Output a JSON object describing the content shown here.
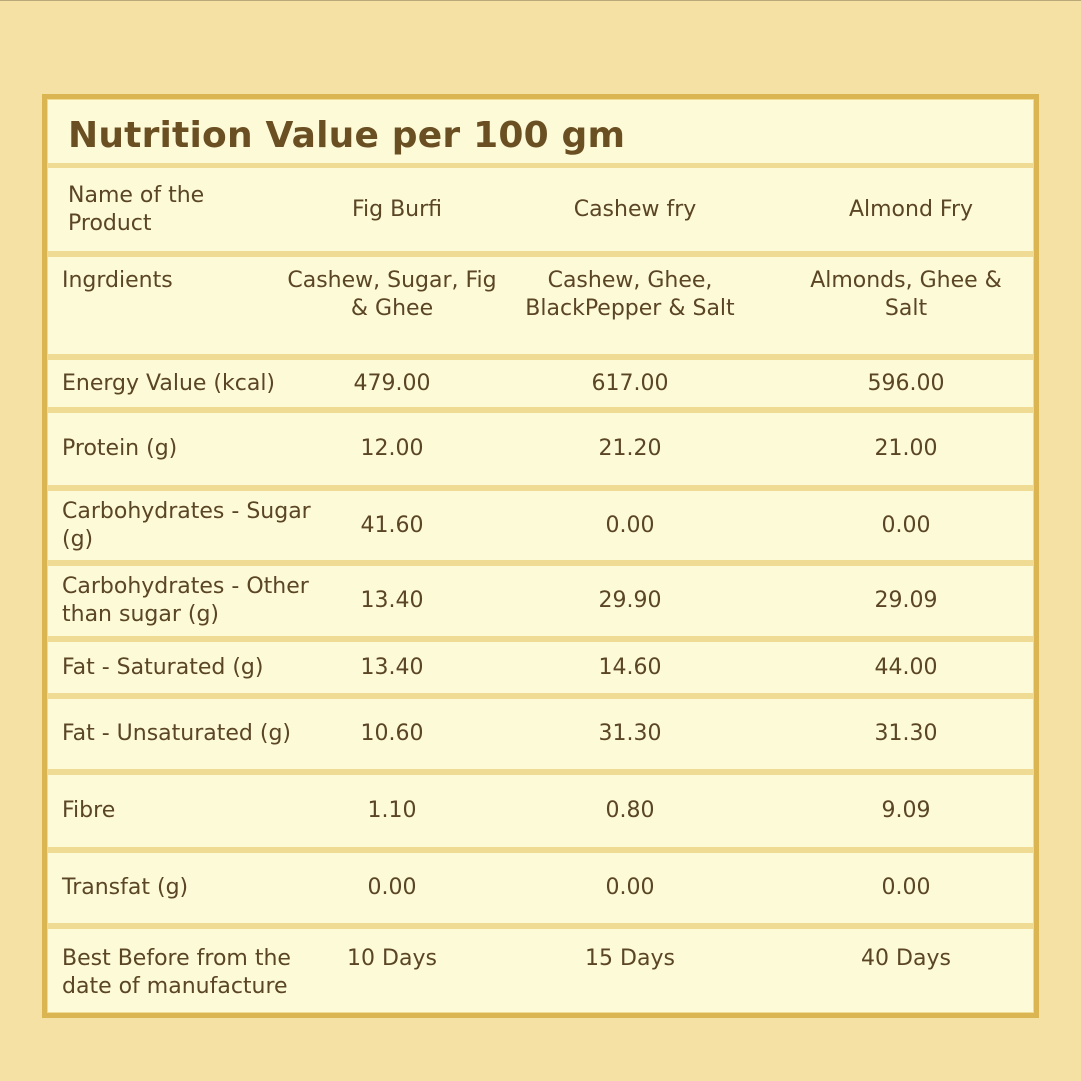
{
  "title": "Nutrition Value per 100 gm",
  "header": {
    "label": "Name of the Product",
    "products": [
      "Fig Burfi",
      "Cashew fry",
      "Almond Fry"
    ]
  },
  "ingredients": {
    "label": "Ingrdients",
    "values": [
      "Cashew, Sugar, Fig & Ghee",
      "Cashew, Ghee, BlackPepper & Salt",
      "Almonds, Ghee & Salt"
    ]
  },
  "rows": [
    {
      "label": "Energy Value (kcal)",
      "values": [
        "479.00",
        "617.00",
        "596.00"
      ]
    },
    {
      "label": "Protein (g)",
      "values": [
        "12.00",
        "21.20",
        "21.00"
      ]
    },
    {
      "label": "Carbohydrates - Sugar (g)",
      "values": [
        "41.60",
        "0.00",
        "0.00"
      ]
    },
    {
      "label": "Carbohydrates - Other than sugar (g)",
      "values": [
        "13.40",
        "29.90",
        "29.09"
      ]
    },
    {
      "label": "Fat - Saturated (g)",
      "values": [
        "13.40",
        "14.60",
        "44.00"
      ]
    },
    {
      "label": "Fat - Unsaturated (g)",
      "values": [
        "10.60",
        "31.30",
        "31.30"
      ]
    },
    {
      "label": "Fibre",
      "values": [
        "1.10",
        "0.80",
        "9.09"
      ]
    },
    {
      "label": "Transfat (g)",
      "values": [
        "0.00",
        "0.00",
        "0.00"
      ]
    },
    {
      "label": "Best Before from the date of manufacture",
      "values": [
        "10 Days",
        "15 Days",
        "40 Days"
      ]
    }
  ]
}
